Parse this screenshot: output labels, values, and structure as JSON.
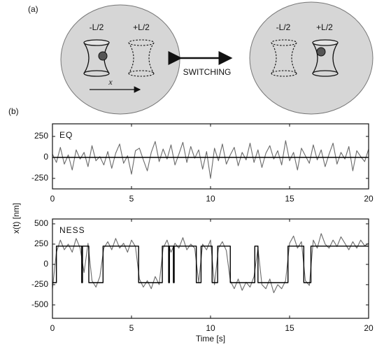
{
  "panel_a": {
    "label": "(a)",
    "left_trap_label": "-L/2",
    "right_trap_label": "+L/2",
    "axis_label": "x",
    "switch_label": "SWITCHING",
    "right_left_trap_label": "-L/2",
    "right_right_trap_label": "+L/2"
  },
  "panel_b": {
    "label": "(b)",
    "ylabel": "x(t) [nm]"
  },
  "chart_data": [
    {
      "type": "line",
      "title": "EQ",
      "xlim": [
        0,
        20
      ],
      "xticks": [
        0,
        5,
        10,
        15,
        20
      ],
      "ylim": [
        -375,
        400
      ],
      "yticks": [
        -250,
        0,
        250
      ],
      "series": [
        {
          "color": "#6a6a6a",
          "x": [
            0,
            0.25,
            0.5,
            0.75,
            1,
            1.25,
            1.5,
            1.75,
            2,
            2.25,
            2.5,
            2.75,
            3,
            3.25,
            3.5,
            3.75,
            4,
            4.25,
            4.5,
            4.75,
            5,
            5.25,
            5.5,
            5.75,
            6,
            6.25,
            6.5,
            6.75,
            7,
            7.25,
            7.5,
            7.75,
            8,
            8.25,
            8.5,
            8.75,
            9,
            9.25,
            9.5,
            9.75,
            10,
            10.25,
            10.5,
            10.75,
            11,
            11.25,
            11.5,
            11.75,
            12,
            12.25,
            12.5,
            12.75,
            13,
            13.25,
            13.5,
            13.75,
            14,
            14.25,
            14.5,
            14.75,
            15,
            15.25,
            15.5,
            15.75,
            16,
            16.25,
            16.5,
            16.75,
            17,
            17.25,
            17.5,
            17.75,
            18,
            18.25,
            18.5,
            18.75,
            19,
            19.25,
            19.5,
            19.75,
            20
          ],
          "values": [
            40,
            -60,
            120,
            -80,
            30,
            -150,
            90,
            -20,
            60,
            -110,
            140,
            -40,
            10,
            -90,
            70,
            -130,
            50,
            160,
            -70,
            20,
            -200,
            80,
            110,
            -30,
            -160,
            60,
            190,
            -50,
            100,
            -20,
            150,
            -90,
            40,
            180,
            -60,
            130,
            -10,
            90,
            -140,
            70,
            -250,
            110,
            -40,
            160,
            -80,
            30,
            120,
            -100,
            60,
            -30,
            170,
            -60,
            90,
            -120,
            50,
            140,
            -20,
            80,
            -90,
            200,
            -40,
            60,
            -150,
            110,
            20,
            -70,
            150,
            -30,
            90,
            -110,
            40,
            170,
            -80,
            60,
            -20,
            130,
            -160,
            80,
            10,
            -50,
            100
          ]
        },
        {
          "color": "#000000",
          "x": [
            0,
            20
          ],
          "values": [
            0,
            0
          ]
        }
      ]
    },
    {
      "type": "line",
      "title": "NESS",
      "xlabel": "Time [s]",
      "xlim": [
        0,
        20
      ],
      "xticks": [
        0,
        5,
        10,
        15,
        20
      ],
      "ylim": [
        -665,
        560
      ],
      "yticks": [
        -500,
        -250,
        0,
        250,
        500
      ],
      "series": [
        {
          "color": "#6a6a6a",
          "x": [
            0,
            0.25,
            0.5,
            0.75,
            1,
            1.25,
            1.5,
            1.75,
            2,
            2.25,
            2.5,
            2.75,
            3,
            3.25,
            3.5,
            3.75,
            4,
            4.25,
            4.5,
            4.75,
            5,
            5.25,
            5.5,
            5.75,
            6,
            6.25,
            6.5,
            6.75,
            7,
            7.25,
            7.5,
            7.75,
            8,
            8.25,
            8.5,
            8.75,
            9,
            9.25,
            9.5,
            9.75,
            10,
            10.25,
            10.5,
            10.75,
            11,
            11.25,
            11.5,
            11.75,
            12,
            12.25,
            12.5,
            12.75,
            13,
            13.25,
            13.5,
            13.75,
            14,
            14.25,
            14.5,
            14.75,
            15,
            15.25,
            15.5,
            15.75,
            16,
            16.25,
            16.5,
            16.75,
            17,
            17.25,
            17.5,
            17.75,
            18,
            18.25,
            18.5,
            18.75,
            19,
            19.25,
            19.5,
            19.75,
            20
          ],
          "values": [
            -300,
            150,
            300,
            180,
            250,
            150,
            320,
            200,
            -100,
            260,
            -200,
            -280,
            -150,
            200,
            280,
            180,
            320,
            200,
            260,
            150,
            300,
            220,
            -180,
            -280,
            -200,
            -300,
            -150,
            -250,
            200,
            300,
            150,
            260,
            200,
            330,
            180,
            250,
            200,
            -220,
            250,
            180,
            300,
            -250,
            200,
            280,
            170,
            -200,
            -300,
            -180,
            -320,
            -220,
            -280,
            -150,
            200,
            -250,
            -300,
            -180,
            -350,
            -250,
            -300,
            -200,
            260,
            350,
            200,
            280,
            -200,
            -260,
            300,
            200,
            380,
            250,
            200,
            300,
            220,
            340,
            260,
            180,
            280,
            200,
            300,
            230,
            260
          ]
        },
        {
          "color": "#000000",
          "x": [
            0,
            0.25,
            0.25,
            1.85,
            1.85,
            1.9,
            1.9,
            2.3,
            2.3,
            3.2,
            3.2,
            5.45,
            5.45,
            6.95,
            6.95,
            7.35,
            7.35,
            7.4,
            7.4,
            7.65,
            7.65,
            7.7,
            7.7,
            9.1,
            9.1,
            9.4,
            9.4,
            10.1,
            10.1,
            10.45,
            10.45,
            11.25,
            11.25,
            12.8,
            12.8,
            13,
            13,
            14.9,
            14.9,
            15.9,
            15.9,
            16.35,
            16.35,
            20
          ],
          "values": [
            -225,
            -225,
            225,
            225,
            -225,
            -225,
            225,
            225,
            -225,
            -225,
            225,
            225,
            -225,
            -225,
            225,
            225,
            -225,
            -225,
            225,
            225,
            -225,
            -225,
            225,
            225,
            -225,
            -225,
            225,
            225,
            -225,
            -225,
            225,
            225,
            -225,
            -225,
            225,
            225,
            -225,
            -225,
            225,
            225,
            -225,
            -225,
            225,
            225
          ]
        }
      ]
    }
  ]
}
